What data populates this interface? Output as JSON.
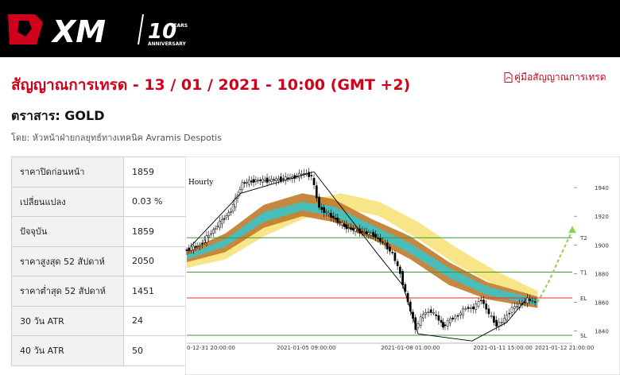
{
  "header": {
    "brand": "XM",
    "badge_number": "10",
    "badge_years": "YEARS",
    "badge_anniversary": "ANNIVERSARY"
  },
  "page": {
    "title": "สัญญาณการเทรด - 13 / 01 / 2021 - 10:00 (GMT +2)",
    "guide_link": "คู่มือสัญญาณการเทรด",
    "instrument": "ตราสาร: GOLD",
    "author": "โดย: หัวหน้าฝ่ายกลยุทธ์ทางเทคนิค Avramis Despotis"
  },
  "stats": [
    {
      "label": "ราคาปิดก่อนหน้า",
      "value": "1859"
    },
    {
      "label": "เปลี่ยนแปลง",
      "value": "0.03 %"
    },
    {
      "label": "ปัจจุบัน",
      "value": "1859"
    },
    {
      "label": "ราคาสูงสุด 52 สัปดาห์",
      "value": "2050"
    },
    {
      "label": "ราคาต่ำสุด 52 สัปดาห์",
      "value": "1451"
    },
    {
      "label": "30 วัน ATR",
      "value": "24"
    },
    {
      "label": "40 วัน ATR",
      "value": "50"
    }
  ],
  "chart_data": {
    "type": "candlestick",
    "title": "Hourly",
    "x_labels": [
      "0-12-31 20:00:00",
      "2021-01-05 09:00:00",
      "2021-01-08 01:00:00",
      "2021-01-11 15:00:00",
      "2021-01-12 21:00:00"
    ],
    "y_ticks": [
      1840,
      1860,
      1880,
      1900,
      1920,
      1940
    ],
    "ylim": [
      1832,
      1955
    ],
    "levels": [
      {
        "label": "T2",
        "value": 1905,
        "color": "#3a9a3a"
      },
      {
        "label": "T1",
        "value": 1881,
        "color": "#3a9a3a"
      },
      {
        "label": "EL",
        "value": 1863,
        "color": "#e03030"
      },
      {
        "label": "SL",
        "value": 1837,
        "color": "#3a9a3a"
      }
    ],
    "price_path": [
      [
        0,
        1896
      ],
      [
        8,
        1900
      ],
      [
        16,
        1912
      ],
      [
        24,
        1924
      ],
      [
        30,
        1943
      ],
      [
        37,
        1945
      ],
      [
        44,
        1945
      ],
      [
        50,
        1946
      ],
      [
        56,
        1947
      ],
      [
        62,
        1950
      ],
      [
        66,
        1948
      ],
      [
        70,
        1926
      ],
      [
        76,
        1920
      ],
      [
        84,
        1912
      ],
      [
        92,
        1909
      ],
      [
        98,
        1907
      ],
      [
        104,
        1900
      ],
      [
        108,
        1894
      ],
      [
        112,
        1880
      ],
      [
        116,
        1860
      ],
      [
        120,
        1842
      ],
      [
        124,
        1852
      ],
      [
        128,
        1854
      ],
      [
        132,
        1848
      ],
      [
        134,
        1843
      ],
      [
        138,
        1848
      ],
      [
        142,
        1851
      ],
      [
        146,
        1856
      ],
      [
        150,
        1856
      ],
      [
        154,
        1862
      ],
      [
        158,
        1852
      ],
      [
        162,
        1844
      ],
      [
        166,
        1848
      ],
      [
        170,
        1856
      ],
      [
        174,
        1858
      ],
      [
        178,
        1862
      ],
      [
        182,
        1860
      ]
    ],
    "cloud_orange": [
      [
        0,
        1888,
        1896
      ],
      [
        20,
        1895,
        1908
      ],
      [
        40,
        1912,
        1928
      ],
      [
        60,
        1920,
        1936
      ],
      [
        76,
        1916,
        1932
      ],
      [
        96,
        1904,
        1918
      ],
      [
        116,
        1890,
        1906
      ],
      [
        136,
        1872,
        1888
      ],
      [
        156,
        1862,
        1874
      ],
      [
        182,
        1856,
        1864
      ]
    ],
    "cloud_teal": [
      [
        0,
        1890,
        1893
      ],
      [
        20,
        1899,
        1904
      ],
      [
        40,
        1916,
        1923
      ],
      [
        60,
        1924,
        1930
      ],
      [
        76,
        1920,
        1927
      ],
      [
        96,
        1908,
        1914
      ],
      [
        116,
        1894,
        1901
      ],
      [
        136,
        1877,
        1884
      ],
      [
        156,
        1865,
        1871
      ],
      [
        182,
        1858,
        1862
      ]
    ],
    "cloud_yellow": [
      [
        0,
        1884,
        1890
      ],
      [
        20,
        1890,
        1896
      ],
      [
        40,
        1906,
        1916
      ],
      [
        60,
        1918,
        1930
      ],
      [
        80,
        1926,
        1936
      ],
      [
        100,
        1920,
        1930
      ],
      [
        120,
        1904,
        1916
      ],
      [
        140,
        1886,
        1898
      ],
      [
        160,
        1872,
        1882
      ],
      [
        182,
        1864,
        1868
      ]
    ],
    "projection": [
      [
        182,
        1860
      ],
      [
        188,
        1875
      ],
      [
        194,
        1893
      ],
      [
        200,
        1910
      ]
    ],
    "colors": {
      "up": "#ffffff",
      "down": "#000000",
      "orange": "#c07a2c",
      "teal": "#3cc3c6",
      "yellow": "#f7e27a",
      "projection": "#8fd14f"
    }
  }
}
